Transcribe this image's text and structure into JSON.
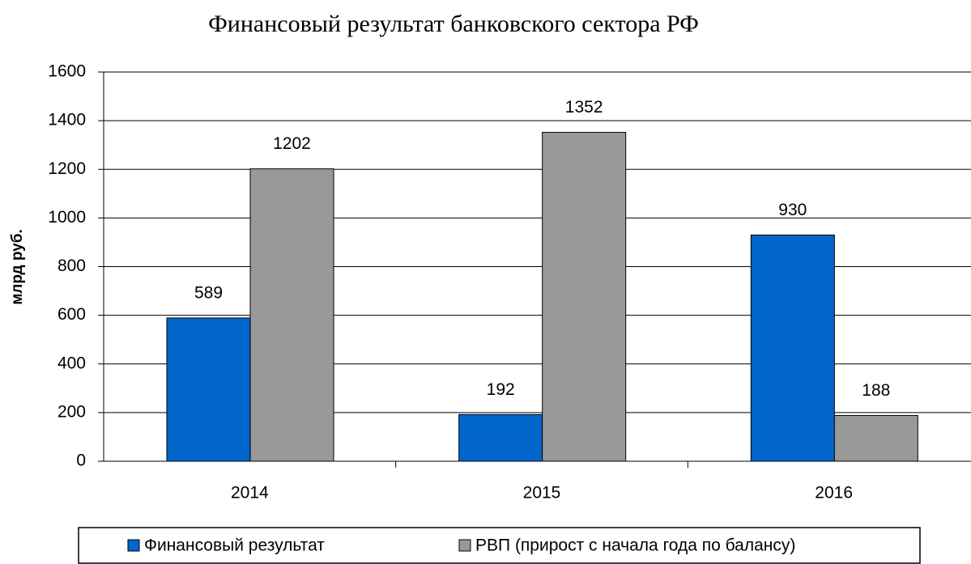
{
  "chart_data": {
    "type": "bar",
    "title": "Финансовый результат банковского сектора РФ",
    "y_label": "млрд руб.",
    "categories": [
      "2014",
      "2015",
      "2016"
    ],
    "series": [
      {
        "name": "Финансовый результат",
        "color": "#0066cc",
        "values": [
          589,
          192,
          930
        ]
      },
      {
        "name": "РВП (прирост с начала года по балансу)",
        "color": "#999999",
        "values": [
          1202,
          1352,
          188
        ]
      }
    ],
    "ylim": [
      0,
      1600
    ],
    "yticks": [
      0,
      200,
      400,
      600,
      800,
      1000,
      1200,
      1400,
      1600
    ],
    "grid": true,
    "legend": "bottom"
  }
}
